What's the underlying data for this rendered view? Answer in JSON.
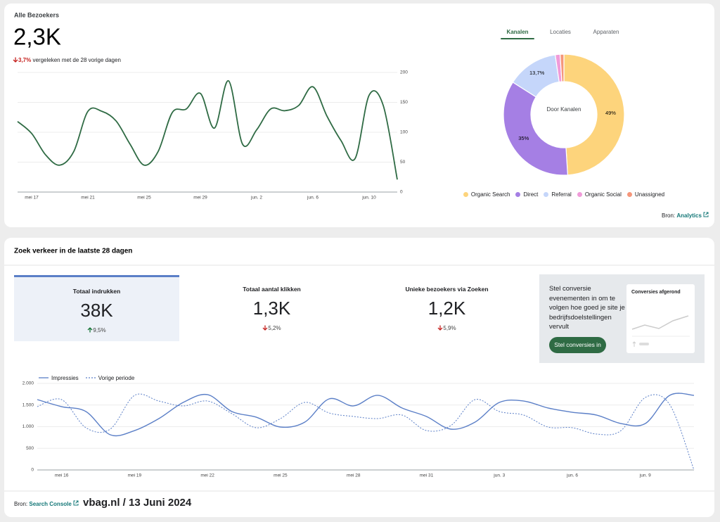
{
  "visitors": {
    "title": "Alle Bezoekers",
    "value": "2,3K",
    "change": "3,7%",
    "direction": "down",
    "comparison": "vergeleken met de 28 vorige dagen"
  },
  "channels": {
    "tabs": [
      "Kanalen",
      "Locaties",
      "Apparaten"
    ],
    "active_tab": 0,
    "source_label": "Bron:",
    "source_link": "Analytics"
  },
  "search": {
    "title": "Zoek verkeer in de laatste 28 dagen",
    "selected_metric": 0,
    "metrics": [
      {
        "label": "Totaal indrukken",
        "value": "38K",
        "change": "9,5%",
        "direction": "up"
      },
      {
        "label": "Totaal aantal klikken",
        "value": "1,3K",
        "change": "5,2%",
        "direction": "down"
      },
      {
        "label": "Unieke bezoekers via Zoeken",
        "value": "1,2K",
        "change": "5,9%",
        "direction": "down"
      }
    ],
    "promo": {
      "text": "Stel conversie evenementen in om te volgen hoe goed je site je bedrijfsdoelstellingen vervult",
      "button": "Stel conversies in",
      "preview_title": "Conversies afgerond"
    }
  },
  "footer": {
    "source_label": "Bron:",
    "source_link": "Search Console",
    "credit": "vbag.nl / 13 Juni 2024"
  },
  "chart_data": [
    {
      "type": "line",
      "categories": [
        null,
        "mei 17",
        null,
        null,
        null,
        "mei 21",
        null,
        null,
        null,
        "mei 25",
        null,
        null,
        null,
        "mei 29",
        null,
        null,
        null,
        "jun. 2",
        null,
        null,
        null,
        "jun. 6",
        null,
        null,
        null,
        "jun. 10",
        null,
        null
      ],
      "values": [
        118,
        98,
        62,
        45,
        68,
        135,
        135,
        119,
        80,
        45,
        68,
        133,
        139,
        165,
        107,
        186,
        80,
        104,
        139,
        136,
        145,
        176,
        127,
        86,
        56,
        162,
        145,
        21
      ],
      "color": "#2f6b44",
      "ylim": [
        0,
        200
      ],
      "yticks": [
        0,
        50,
        100,
        150,
        200
      ],
      "grid": true,
      "y_axis_side": "right"
    },
    {
      "type": "donut",
      "center_label": "Door Kanalen",
      "categories": [
        "Organic Search",
        "Direct",
        "Referral",
        "Organic Social",
        "Unassigned"
      ],
      "values": [
        49,
        35,
        13.7,
        1.3,
        1
      ],
      "value_labels": [
        "49%",
        "35%",
        "13,7%",
        null,
        null
      ],
      "colors": [
        "#fdd47c",
        "#a57fe4",
        "#c5d6fa",
        "#f09bd9",
        "#f5967a"
      ],
      "legend": "bottom"
    },
    {
      "type": "line",
      "categories": [
        null,
        "mei 16",
        null,
        null,
        "mei 19",
        null,
        null,
        "mei 22",
        null,
        null,
        "mei 25",
        null,
        null,
        "mei 28",
        null,
        null,
        "mei 31",
        null,
        null,
        "jun. 3",
        null,
        null,
        "jun. 6",
        null,
        null,
        "jun. 9",
        null,
        null
      ],
      "series": [
        {
          "name": "Impressies",
          "color": "#5b7fc7",
          "dash": false,
          "values": [
            1626,
            1463,
            1350,
            813,
            910,
            1187,
            1561,
            1740,
            1350,
            1220,
            992,
            1106,
            1642,
            1480,
            1724,
            1431,
            1236,
            943,
            1106,
            1561,
            1593,
            1431,
            1333,
            1268,
            1073,
            1073,
            1724,
            1724
          ]
        },
        {
          "name": "Vorige periode",
          "color": "#5b7fc7",
          "dash": true,
          "values": [
            1463,
            1626,
            976,
            943,
            1724,
            1593,
            1480,
            1593,
            1301,
            976,
            1187,
            1561,
            1317,
            1236,
            1187,
            1268,
            910,
            1024,
            1626,
            1350,
            1268,
            992,
            976,
            829,
            910,
            1675,
            1512,
            0
          ]
        }
      ],
      "ylim": [
        0,
        2000
      ],
      "yticks": [
        0,
        500,
        {
          "value": 1000,
          "label": "1.000"
        },
        {
          "value": 1500,
          "label": "1.500"
        },
        {
          "value": 2000,
          "label": "2.000"
        }
      ],
      "grid": true,
      "y_axis_side": "left",
      "legend": "top-left"
    }
  ]
}
